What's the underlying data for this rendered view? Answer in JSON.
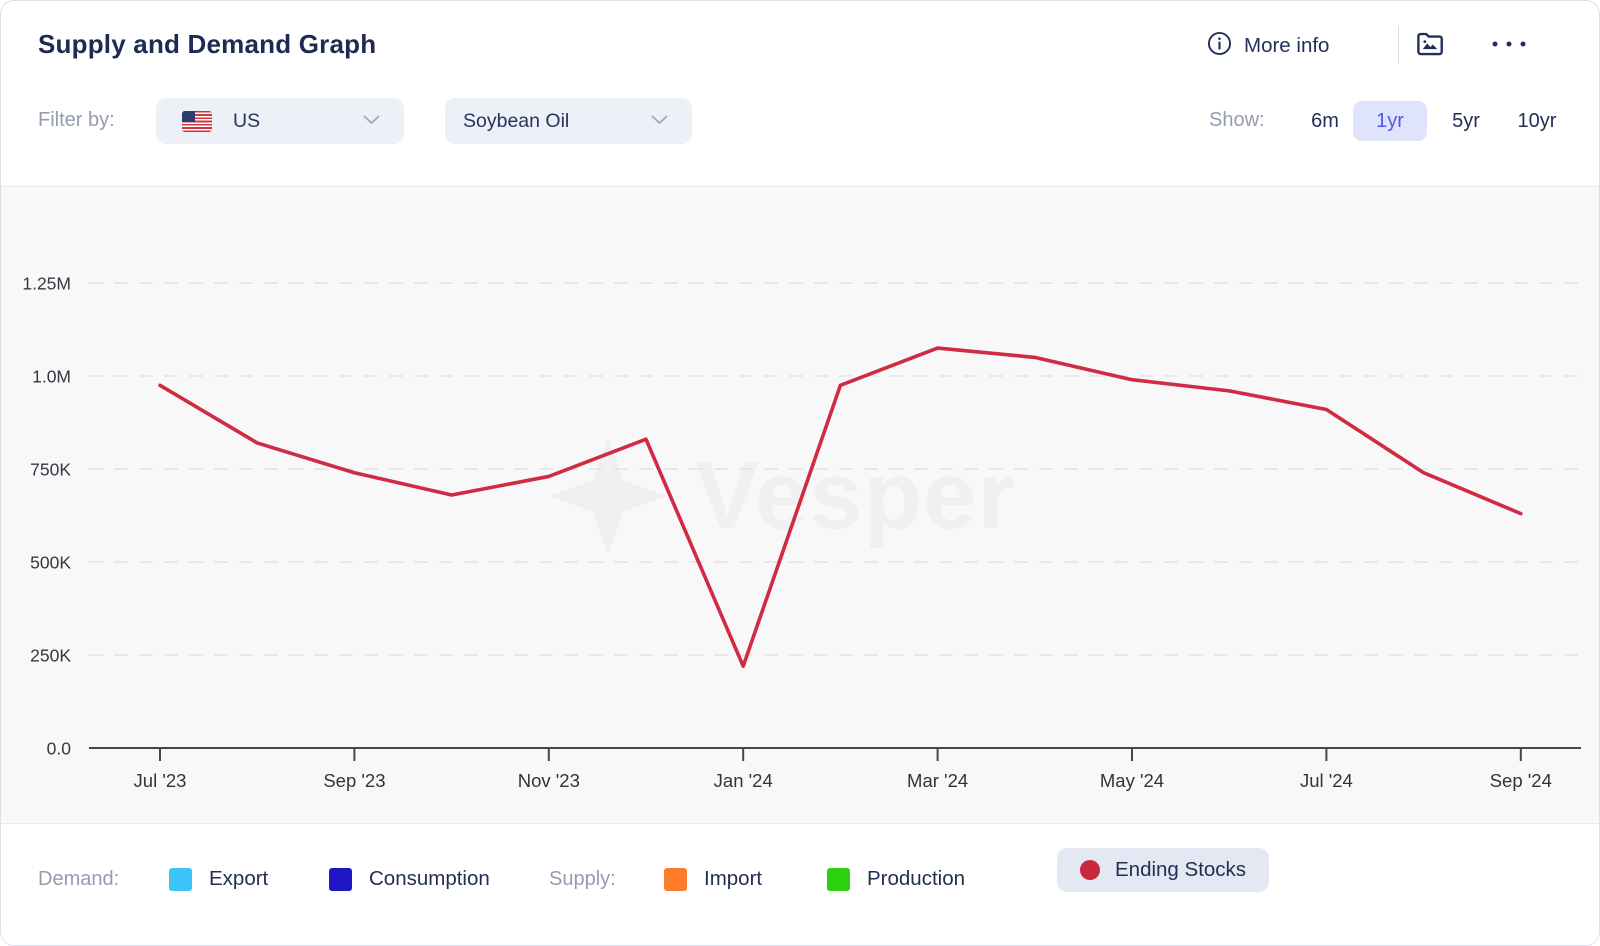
{
  "header": {
    "title": "Supply and Demand Graph",
    "more_info_label": "More info",
    "filter_label": "Filter by:",
    "country_value": "US",
    "product_value": "Soybean Oil",
    "show_label": "Show:",
    "ranges": [
      {
        "label": "6m",
        "selected": false
      },
      {
        "label": "1yr",
        "selected": true
      },
      {
        "label": "5yr",
        "selected": false
      },
      {
        "label": "10yr",
        "selected": false
      }
    ],
    "selected_range_bg": "#dfe3fc",
    "selected_range_color": "#4c5ae7"
  },
  "watermark": "Vesper",
  "chart_data": {
    "type": "line",
    "title": "Supply and Demand Graph",
    "x": [
      "Jul '23",
      "Aug '23",
      "Sep '23",
      "Oct '23",
      "Nov '23",
      "Dec '23",
      "Jan '24",
      "Feb '24",
      "Mar '24",
      "Apr '24",
      "May '24",
      "Jun '24",
      "Jul '24",
      "Aug '24",
      "Sep '24"
    ],
    "series": [
      {
        "name": "Ending Stocks",
        "color": "#d02b42",
        "values": [
          975000,
          820000,
          740000,
          680000,
          730000,
          830000,
          220000,
          975000,
          1075000,
          1050000,
          990000,
          960000,
          910000,
          740000,
          630000
        ]
      }
    ],
    "x_tick_labels": [
      "Jul '23",
      "Sep '23",
      "Nov '23",
      "Jan '24",
      "Mar '24",
      "May '24",
      "Jul '24",
      "Sep '24"
    ],
    "y_ticks": [
      {
        "label": "1.25M",
        "value": 1250000
      },
      {
        "label": "1.0M",
        "value": 1000000
      },
      {
        "label": "750K",
        "value": 750000
      },
      {
        "label": "500K",
        "value": 500000
      },
      {
        "label": "250K",
        "value": 250000
      },
      {
        "label": "0.0",
        "value": 0
      }
    ],
    "ylim": [
      0,
      1250000
    ],
    "grid": "horizontal-dashed",
    "legend_position": "bottom"
  },
  "legend": {
    "demand_label": "Demand:",
    "supply_label": "Supply:",
    "items": [
      {
        "label": "Export",
        "color": "#3cc3f8",
        "group": "demand",
        "active": false
      },
      {
        "label": "Consumption",
        "color": "#1d16c2",
        "group": "demand",
        "active": false
      },
      {
        "label": "Import",
        "color": "#fb7d2c",
        "group": "supply",
        "active": false
      },
      {
        "label": "Production",
        "color": "#2bd00e",
        "group": "supply",
        "active": false
      },
      {
        "label": "Ending Stocks",
        "color": "#c9293e",
        "group": "stocks",
        "active": true
      }
    ]
  }
}
